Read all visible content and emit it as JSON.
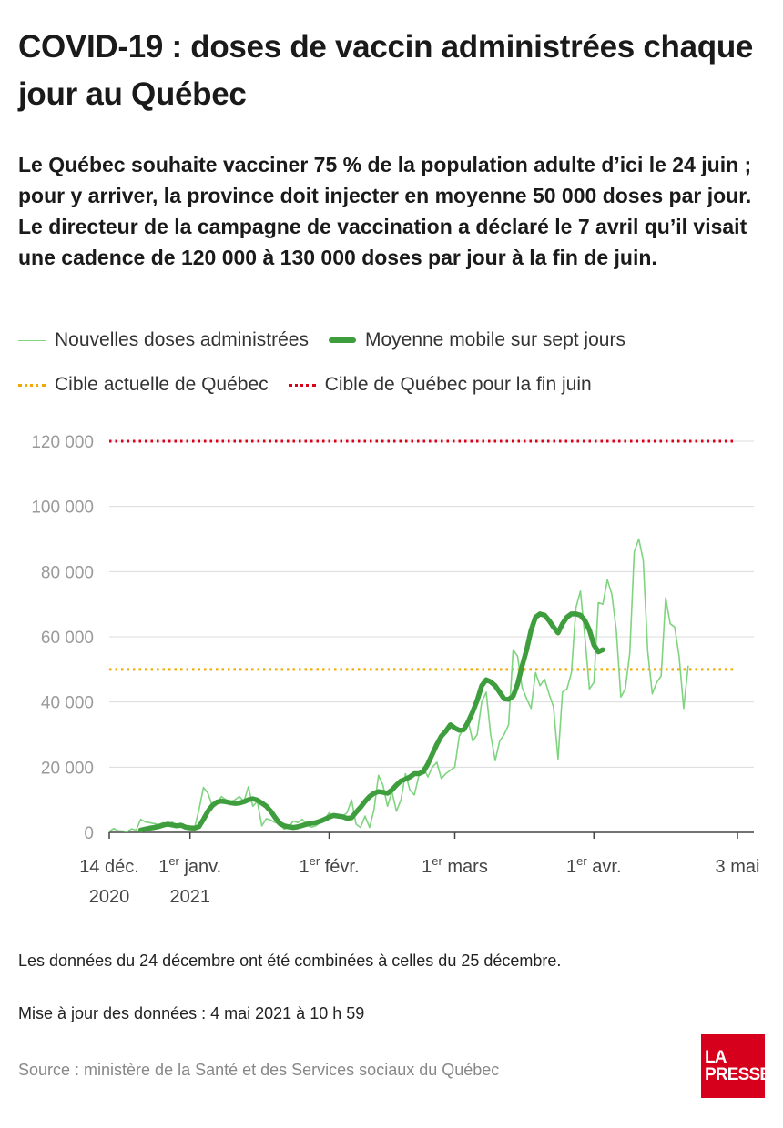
{
  "header": {
    "title": "COVID-19 : doses de vaccin administrées chaque jour au Québec",
    "subtitle": "Le Québec souhaite vacciner 75 % de la population adulte d’ici le 24 juin ; pour y arriver, la province doit injecter en moyenne 50 000 doses par jour. Le directeur de la campagne de vaccination a déclaré le 7 avril qu’il visait une cadence de 120 000 à 130 000 doses par jour à la fin de juin."
  },
  "legend": {
    "daily": "Nouvelles doses administrées",
    "avg": "Moyenne mobile sur sept jours",
    "target_current": "Cible actuelle de Québec",
    "target_june": "Cible de Québec pour la fin juin"
  },
  "colors": {
    "daily": "#7fd47f",
    "avg": "#3e9e3e",
    "target_current": "#f2a900",
    "target_june": "#d9001b",
    "brand": "#d6001c"
  },
  "chart_data": {
    "type": "line",
    "ylim": [
      0,
      120000
    ],
    "yticks": [
      0,
      20000,
      40000,
      60000,
      80000,
      100000,
      120000
    ],
    "ytick_labels": [
      "0",
      "20 000",
      "40 000",
      "60 000",
      "80 000",
      "100 000",
      "120 000"
    ],
    "xlim": [
      "2020-12-14",
      "2021-05-03"
    ],
    "xticks": [
      {
        "date": "2020-12-14",
        "line1": "14 déc.",
        "sup": "",
        "line1b": "",
        "line2": "2020"
      },
      {
        "date": "2021-01-01",
        "line1": "1",
        "sup": "er",
        "line1b": " janv.",
        "line2": "2021"
      },
      {
        "date": "2021-02-01",
        "line1": "1",
        "sup": "er",
        "line1b": " févr.",
        "line2": ""
      },
      {
        "date": "2021-03-01",
        "line1": "1",
        "sup": "er",
        "line1b": " mars",
        "line2": ""
      },
      {
        "date": "2021-04-01",
        "line1": "1",
        "sup": "er",
        "line1b": " avr.",
        "line2": ""
      },
      {
        "date": "2021-05-03",
        "line1": "3 mai",
        "sup": "",
        "line1b": "",
        "line2": ""
      }
    ],
    "targets": [
      {
        "name": "Cible actuelle de Québec",
        "value": 50000,
        "color": "#f2a900",
        "from": "2020-12-14",
        "to": "2021-05-03"
      },
      {
        "name": "Cible de Québec pour la fin juin",
        "value": 120000,
        "color": "#d9001b",
        "from": "2020-12-14",
        "to": "2021-05-03"
      }
    ],
    "series": [
      {
        "name": "Nouvelles doses administrées",
        "color": "#7fd47f",
        "start": "2020-12-14",
        "values": [
          300,
          1200,
          500,
          400,
          200,
          1100,
          700,
          4000,
          3200,
          3000,
          2700,
          2400,
          3000,
          2400,
          3100,
          2300,
          1700,
          1500,
          1200,
          1300,
          7000,
          13800,
          12000,
          8000,
          9000,
          11000,
          10000,
          9500,
          10000,
          11000,
          9500,
          14000,
          8000,
          9500,
          2000,
          4200,
          3800,
          3000,
          2500,
          1000,
          1500,
          3500,
          3000,
          4000,
          2500,
          1600,
          2000,
          3000,
          4000,
          6000,
          5000,
          5500,
          5000,
          6000,
          10000,
          2500,
          1500,
          5000,
          1500,
          7000,
          17500,
          14500,
          8000,
          12500,
          6500,
          10000,
          18000,
          13000,
          11500,
          17500,
          20000,
          17000,
          20000,
          21500,
          16500,
          18000,
          19000,
          20000,
          29500,
          32000,
          34000,
          28000,
          30000,
          40000,
          43000,
          30000,
          22000,
          28000,
          30000,
          33000,
          56000,
          54000,
          44500,
          41000,
          38000,
          49000,
          45000,
          47000,
          42500,
          38500,
          22500,
          43000,
          44000,
          49000,
          69000,
          74000,
          60000,
          44000,
          46000,
          70500,
          70000,
          77500,
          73000,
          62000,
          41500,
          44000,
          55000,
          86000,
          90000,
          83500,
          55500,
          42500,
          46000,
          48000,
          72000,
          64000,
          63000,
          54000,
          38000,
          51000
        ]
      },
      {
        "name": "Moyenne mobile sur sept jours",
        "color": "#3e9e3e",
        "start": "2020-12-21",
        "values": [
          700,
          1000,
          1300,
          1500,
          1800,
          2200,
          2500,
          2300,
          2000,
          2200,
          1600,
          1400,
          1300,
          1800,
          4000,
          6500,
          8300,
          9300,
          9600,
          9400,
          9100,
          8900,
          9000,
          9400,
          10000,
          10300,
          9900,
          9000,
          8000,
          6500,
          4500,
          2700,
          2000,
          1700,
          1500,
          1700,
          2100,
          2500,
          2800,
          3000,
          3400,
          4000,
          4700,
          5200,
          5000,
          4800,
          4300,
          4500,
          6200,
          7700,
          9500,
          11000,
          12000,
          12500,
          12300,
          12000,
          13000,
          14500,
          15800,
          16300,
          17000,
          18000,
          18000,
          18600,
          21000,
          24000,
          27000,
          29500,
          31000,
          33000,
          32000,
          31300,
          31500,
          34000,
          37000,
          40500,
          45000,
          46800,
          46200,
          45000,
          43000,
          41000,
          40800,
          41800,
          45500,
          51000,
          56000,
          62000,
          66000,
          67000,
          66600,
          65000,
          63000,
          61200,
          64000,
          66000,
          67000,
          67000,
          66600,
          65000,
          62000,
          57500,
          55400,
          56000
        ]
      }
    ]
  },
  "footer": {
    "note1": "Les données du 24 décembre ont été combinées à celles du 25 décembre.",
    "note2": "Mise à jour des données : 4 mai 2021 à 10 h 59",
    "source": "Source : ministère de la Santé et des Services sociaux du Québec",
    "logo_line1": "LA",
    "logo_line2": "PRESSE"
  }
}
